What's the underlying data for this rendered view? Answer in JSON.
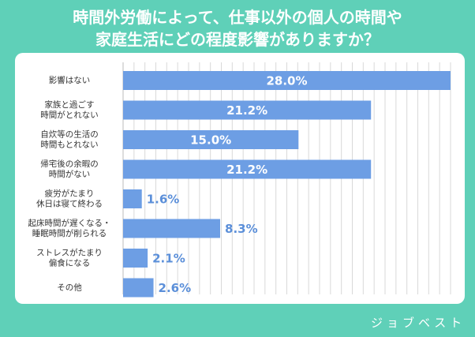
{
  "title": {
    "line1": "時間外労働によって、仕事以外の個人の時間や",
    "line2": "家庭生活にどの程度影響がありますか？"
  },
  "chart_data": {
    "type": "bar",
    "orientation": "horizontal",
    "categories": [
      [
        "影響はない"
      ],
      [
        "家族と過ごす",
        "時間がとれない"
      ],
      [
        "自炊等の生活の",
        "時間もとれない"
      ],
      [
        "帰宅後の余暇の",
        "時間がない"
      ],
      [
        "疲労がたまり",
        "休日は寝て終わる"
      ],
      [
        "起床時間が遅くなる・",
        "睡眠時間が削られる"
      ],
      [
        "ストレスがたまり",
        "偏食になる"
      ],
      [
        "その他"
      ]
    ],
    "values": [
      28.0,
      21.2,
      15.0,
      21.2,
      1.6,
      8.3,
      2.1,
      2.6
    ],
    "value_labels": [
      "28.0%",
      "21.2%",
      "15.0%",
      "21.2%",
      "1.6%",
      "8.3%",
      "2.1%",
      "2.6%"
    ],
    "xlim": [
      0,
      28.0
    ],
    "grid": true,
    "colors": {
      "bar": "#6d9ee4",
      "label_inside": "#ffffff",
      "label_outside": "#5b8fd9",
      "grid": "#d9d9d9",
      "background": "#5fd0b8"
    }
  },
  "brand": {
    "logo_text": "ジョブベスト"
  }
}
